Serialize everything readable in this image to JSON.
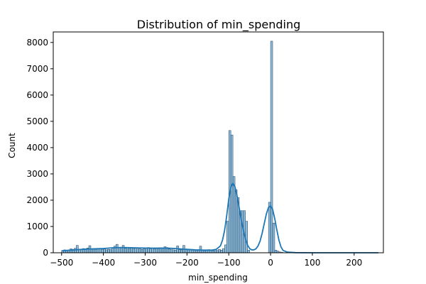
{
  "chart_data": {
    "type": "bar",
    "title": "Distribution of min_spending",
    "xlabel": "min_spending",
    "ylabel": "Count",
    "xlim": [
      -520,
      270
    ],
    "ylim": [
      0,
      8400
    ],
    "x_ticks": [
      -500,
      -400,
      -300,
      -200,
      -100,
      0,
      100,
      200
    ],
    "y_ticks": [
      0,
      1000,
      2000,
      3000,
      4000,
      5000,
      6000,
      7000,
      8000
    ],
    "bin_width": 5,
    "bins": [
      {
        "x": -500,
        "count": 90
      },
      {
        "x": -495,
        "count": 110
      },
      {
        "x": -490,
        "count": 80
      },
      {
        "x": -485,
        "count": 100
      },
      {
        "x": -480,
        "count": 150
      },
      {
        "x": -475,
        "count": 130
      },
      {
        "x": -470,
        "count": 170
      },
      {
        "x": -465,
        "count": 280
      },
      {
        "x": -460,
        "count": 120
      },
      {
        "x": -455,
        "count": 140
      },
      {
        "x": -450,
        "count": 160
      },
      {
        "x": -445,
        "count": 130
      },
      {
        "x": -440,
        "count": 180
      },
      {
        "x": -435,
        "count": 270
      },
      {
        "x": -430,
        "count": 140
      },
      {
        "x": -425,
        "count": 160
      },
      {
        "x": -420,
        "count": 130
      },
      {
        "x": -415,
        "count": 150
      },
      {
        "x": -410,
        "count": 170
      },
      {
        "x": -405,
        "count": 120
      },
      {
        "x": -400,
        "count": 140
      },
      {
        "x": -395,
        "count": 110
      },
      {
        "x": -390,
        "count": 130
      },
      {
        "x": -385,
        "count": 120
      },
      {
        "x": -380,
        "count": 200
      },
      {
        "x": -375,
        "count": 250
      },
      {
        "x": -370,
        "count": 320
      },
      {
        "x": -365,
        "count": 190
      },
      {
        "x": -360,
        "count": 210
      },
      {
        "x": -355,
        "count": 280
      },
      {
        "x": -350,
        "count": 170
      },
      {
        "x": -345,
        "count": 190
      },
      {
        "x": -340,
        "count": 160
      },
      {
        "x": -335,
        "count": 180
      },
      {
        "x": -330,
        "count": 150
      },
      {
        "x": -325,
        "count": 170
      },
      {
        "x": -320,
        "count": 140
      },
      {
        "x": -315,
        "count": 160
      },
      {
        "x": -310,
        "count": 130
      },
      {
        "x": -305,
        "count": 150
      },
      {
        "x": -300,
        "count": 170
      },
      {
        "x": -295,
        "count": 200
      },
      {
        "x": -290,
        "count": 150
      },
      {
        "x": -285,
        "count": 170
      },
      {
        "x": -280,
        "count": 140
      },
      {
        "x": -275,
        "count": 160
      },
      {
        "x": -270,
        "count": 150
      },
      {
        "x": -265,
        "count": 170
      },
      {
        "x": -260,
        "count": 190
      },
      {
        "x": -255,
        "count": 230
      },
      {
        "x": -250,
        "count": 200
      },
      {
        "x": -245,
        "count": 140
      },
      {
        "x": -240,
        "count": 120
      },
      {
        "x": -235,
        "count": 110
      },
      {
        "x": -230,
        "count": 100
      },
      {
        "x": -225,
        "count": 260
      },
      {
        "x": -220,
        "count": 120
      },
      {
        "x": -215,
        "count": 110
      },
      {
        "x": -210,
        "count": 280
      },
      {
        "x": -205,
        "count": 130
      },
      {
        "x": -200,
        "count": 110
      },
      {
        "x": -195,
        "count": 120
      },
      {
        "x": -190,
        "count": 100
      },
      {
        "x": -185,
        "count": 110
      },
      {
        "x": -180,
        "count": 90
      },
      {
        "x": -175,
        "count": 100
      },
      {
        "x": -170,
        "count": 250
      },
      {
        "x": -165,
        "count": 100
      },
      {
        "x": -160,
        "count": 80
      },
      {
        "x": -155,
        "count": 90
      },
      {
        "x": -150,
        "count": 120
      },
      {
        "x": -145,
        "count": 90
      },
      {
        "x": -140,
        "count": 80
      },
      {
        "x": -135,
        "count": 120
      },
      {
        "x": -130,
        "count": 90
      },
      {
        "x": -125,
        "count": 130
      },
      {
        "x": -120,
        "count": 100
      },
      {
        "x": -115,
        "count": 160
      },
      {
        "x": -110,
        "count": 300
      },
      {
        "x": -105,
        "count": 1200
      },
      {
        "x": -100,
        "count": 4650
      },
      {
        "x": -95,
        "count": 4480
      },
      {
        "x": -90,
        "count": 2900
      },
      {
        "x": -85,
        "count": 2400
      },
      {
        "x": -80,
        "count": 2100
      },
      {
        "x": -75,
        "count": 1600
      },
      {
        "x": -70,
        "count": 1600
      },
      {
        "x": -65,
        "count": 1600
      },
      {
        "x": -60,
        "count": 1200
      },
      {
        "x": -55,
        "count": 100
      },
      {
        "x": -50,
        "count": 0
      },
      {
        "x": -45,
        "count": 0
      },
      {
        "x": -40,
        "count": 0
      },
      {
        "x": -35,
        "count": 0
      },
      {
        "x": -30,
        "count": 0
      },
      {
        "x": -25,
        "count": 0
      },
      {
        "x": -20,
        "count": 0
      },
      {
        "x": -15,
        "count": 0
      },
      {
        "x": -10,
        "count": 0
      },
      {
        "x": -5,
        "count": 1920
      },
      {
        "x": 0,
        "count": 8050
      },
      {
        "x": 5,
        "count": 1130
      },
      {
        "x": 10,
        "count": 100
      },
      {
        "x": 15,
        "count": 60
      },
      {
        "x": 20,
        "count": 30
      },
      {
        "x": 25,
        "count": 15
      }
    ],
    "kde": {
      "color": "#1f77b4",
      "points": [
        [
          -500,
          70
        ],
        [
          -480,
          100
        ],
        [
          -460,
          120
        ],
        [
          -440,
          140
        ],
        [
          -420,
          150
        ],
        [
          -400,
          160
        ],
        [
          -380,
          185
        ],
        [
          -360,
          200
        ],
        [
          -340,
          195
        ],
        [
          -320,
          185
        ],
        [
          -300,
          180
        ],
        [
          -280,
          175
        ],
        [
          -260,
          180
        ],
        [
          -240,
          170
        ],
        [
          -220,
          150
        ],
        [
          -200,
          130
        ],
        [
          -180,
          110
        ],
        [
          -160,
          100
        ],
        [
          -140,
          100
        ],
        [
          -130,
          130
        ],
        [
          -120,
          260
        ],
        [
          -115,
          480
        ],
        [
          -110,
          850
        ],
        [
          -105,
          1400
        ],
        [
          -100,
          2050
        ],
        [
          -95,
          2500
        ],
        [
          -90,
          2650
        ],
        [
          -85,
          2500
        ],
        [
          -80,
          2150
        ],
        [
          -75,
          1700
        ],
        [
          -70,
          1250
        ],
        [
          -65,
          850
        ],
        [
          -60,
          520
        ],
        [
          -55,
          290
        ],
        [
          -50,
          160
        ],
        [
          -45,
          110
        ],
        [
          -40,
          110
        ],
        [
          -35,
          150
        ],
        [
          -30,
          260
        ],
        [
          -25,
          450
        ],
        [
          -20,
          750
        ],
        [
          -15,
          1120
        ],
        [
          -10,
          1480
        ],
        [
          -5,
          1720
        ],
        [
          0,
          1780
        ],
        [
          5,
          1650
        ],
        [
          10,
          1300
        ],
        [
          15,
          870
        ],
        [
          20,
          480
        ],
        [
          25,
          220
        ],
        [
          30,
          90
        ],
        [
          40,
          25
        ],
        [
          60,
          5
        ],
        [
          100,
          0
        ],
        [
          150,
          0
        ],
        [
          200,
          0
        ],
        [
          258,
          0
        ]
      ]
    },
    "bar_fill": "#1f77b4",
    "bar_fill_opacity": 0.5,
    "bar_edge": "#1f3f5f",
    "grid": false,
    "legend": "none"
  }
}
